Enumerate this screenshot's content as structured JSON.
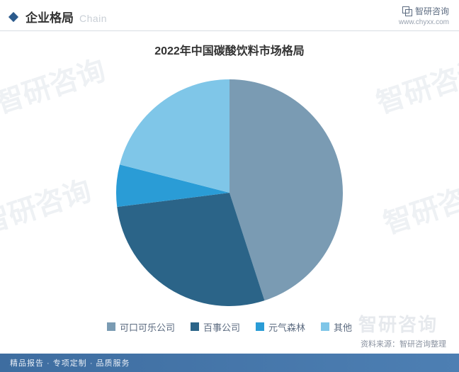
{
  "header": {
    "title": "企业格局",
    "subtitle": "Chain",
    "brand": "智研咨询",
    "url": "www.chyxx.com"
  },
  "chart": {
    "type": "pie",
    "title": "2022年中国碳酸饮料市场格局",
    "title_fontsize": 16,
    "radius": 160,
    "background_color": "#ffffff",
    "slices": [
      {
        "label": "可口可乐公司",
        "value": 45,
        "color": "#7a9bb3"
      },
      {
        "label": "百事公司",
        "value": 28,
        "color": "#2b6488"
      },
      {
        "label": "元气森林",
        "value": 6,
        "color": "#2a9cd6"
      },
      {
        "label": "其他",
        "value": 21,
        "color": "#7fc6e8"
      }
    ],
    "source_text": "资料来源：智研咨询整理"
  },
  "watermark_text": "智研咨询",
  "footer_text": "精品报告 · 专项定制 · 品质服务"
}
